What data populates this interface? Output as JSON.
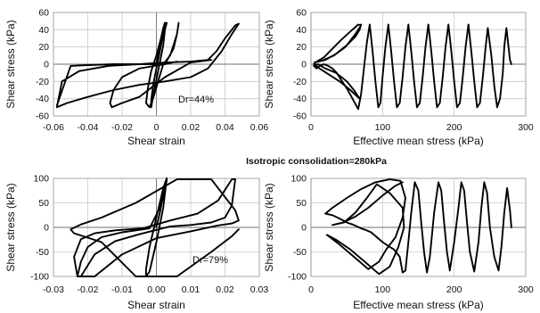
{
  "caption": "Isotropic consolidation=280kPa",
  "chart_data": [
    {
      "type": "line",
      "xlabel": "Shear strain",
      "ylabel": "Shear stress (kPa)",
      "xlim": [
        -0.06,
        0.06
      ],
      "ylim": [
        -60,
        60
      ],
      "xticks": [
        "-0.06",
        "-0.04",
        "-0.02",
        "0",
        "0.02",
        "0.04",
        "0.06"
      ],
      "yticks": [
        "-60",
        "-40",
        "-20",
        "0",
        "20",
        "40",
        "60"
      ],
      "annotation": "Dr=44%",
      "grid": true,
      "series": [
        {
          "x": [
            0.0,
            0.001,
            0.002,
            0.003,
            0.004,
            0.005,
            0.004,
            0.002,
            0.0,
            -0.002,
            -0.003,
            -0.003,
            -0.002,
            0.0,
            0.002,
            0.004,
            0.005,
            0.006
          ],
          "y": [
            0,
            10,
            22,
            33,
            42,
            48,
            35,
            15,
            -5,
            -25,
            -42,
            -50,
            -38,
            -18,
            2,
            22,
            40,
            48
          ]
        },
        {
          "x": [
            0.005,
            0.004,
            0.002,
            0.0,
            -0.003,
            -0.005,
            -0.006,
            -0.004,
            -0.002,
            0.001,
            0.004,
            0.008,
            0.01,
            0.012,
            0.013,
            0.012,
            0.01,
            0.005,
            -0.01,
            -0.02,
            -0.025,
            -0.027,
            -0.026,
            -0.02,
            -0.01,
            0.005,
            0.02,
            0.032
          ],
          "y": [
            48,
            40,
            25,
            10,
            -8,
            -28,
            -45,
            -50,
            -40,
            -20,
            0,
            10,
            22,
            35,
            48,
            35,
            18,
            0,
            -5,
            -15,
            -30,
            -45,
            -50,
            -45,
            -38,
            -15,
            2,
            5
          ]
        },
        {
          "x": [
            0.012,
            0.005,
            -0.01,
            -0.028,
            -0.045,
            -0.055,
            -0.058,
            -0.052,
            -0.04,
            -0.025,
            -0.01,
            0.005,
            0.02,
            0.03,
            0.038,
            0.044,
            0.048,
            0.046,
            0.04,
            0.035,
            0.03,
            0.02,
            0.005,
            -0.01,
            -0.025,
            -0.04,
            -0.05,
            -0.058
          ],
          "y": [
            3,
            0,
            0,
            -2,
            -8,
            -20,
            -50,
            -45,
            -38,
            -30,
            -24,
            -20,
            -15,
            -5,
            15,
            35,
            47,
            45,
            30,
            15,
            5,
            3,
            2,
            0,
            0,
            -1,
            -2,
            -48
          ]
        }
      ]
    },
    {
      "type": "line",
      "xlabel": "Effective mean stress (kPa)",
      "ylabel": "Shear stress (kPa)",
      "xlim": [
        0,
        300
      ],
      "ylim": [
        -60,
        60
      ],
      "xticks": [
        "0",
        "100",
        "200",
        "300"
      ],
      "yticks": [
        "-60",
        "-40",
        "-20",
        "0",
        "20",
        "40",
        "60"
      ],
      "grid": true,
      "series": [
        {
          "x": [
            280,
            278,
            276,
            273,
            270,
            268,
            264,
            260,
            256,
            252,
            247,
            244,
            240,
            236,
            232,
            228,
            224,
            220,
            216,
            212,
            208,
            204,
            200,
            196,
            192,
            188,
            184,
            180,
            176,
            172,
            168,
            164,
            160,
            156,
            152,
            148,
            144,
            140,
            136,
            132,
            128,
            124,
            120,
            116,
            112,
            108,
            104,
            100,
            97,
            94,
            90,
            86,
            82,
            78,
            74,
            70,
            66,
            58,
            50,
            42,
            36,
            30,
            24,
            18,
            12,
            8,
            4,
            10,
            20,
            35,
            50,
            60,
            68,
            55,
            40,
            25,
            12,
            4,
            8,
            18,
            30,
            42,
            55,
            66,
            70,
            62,
            48,
            32,
            15,
            5,
            20,
            35,
            50,
            62,
            68,
            70
          ],
          "y": [
            0,
            5,
            20,
            42,
            20,
            -10,
            -40,
            -50,
            -25,
            10,
            42,
            20,
            -15,
            -45,
            -50,
            -20,
            15,
            46,
            20,
            -15,
            -45,
            -50,
            -20,
            15,
            46,
            20,
            -15,
            -45,
            -50,
            -20,
            15,
            46,
            20,
            -15,
            -45,
            -50,
            -20,
            15,
            46,
            20,
            -15,
            -45,
            -50,
            -20,
            15,
            46,
            20,
            -15,
            -45,
            -50,
            -20,
            15,
            46,
            25,
            -5,
            -35,
            -52,
            -40,
            -28,
            -18,
            -10,
            -5,
            -2,
            0,
            -2,
            -5,
            -2,
            0,
            -5,
            -10,
            -20,
            -30,
            -40,
            -30,
            -20,
            -12,
            -5,
            0,
            3,
            8,
            18,
            28,
            38,
            46,
            45,
            35,
            20,
            10,
            4,
            2,
            5,
            12,
            22,
            32,
            40,
            46
          ]
        }
      ]
    },
    {
      "type": "line",
      "xlabel": "Shear strain",
      "ylabel": "Shear stress (kPa)",
      "xlim": [
        -0.03,
        0.03
      ],
      "ylim": [
        -100,
        100
      ],
      "xticks": [
        "-0.03",
        "-0.02",
        "-0.01",
        "0.00",
        "0.01",
        "0.02",
        "0.03"
      ],
      "yticks": [
        "-100",
        "-50",
        "0",
        "50",
        "100"
      ],
      "annotation": "Dr=79%",
      "grid": true,
      "series": [
        {
          "x": [
            0.0,
            0.001,
            0.002,
            0.003,
            0.003,
            0.002,
            0.0,
            -0.002,
            -0.003,
            -0.003,
            -0.002,
            0.0,
            0.002,
            0.003
          ],
          "y": [
            0,
            30,
            65,
            95,
            100,
            80,
            20,
            -40,
            -85,
            -100,
            -90,
            -30,
            40,
            100
          ]
        },
        {
          "x": [
            0.003,
            0.001,
            -0.002,
            -0.005,
            -0.01,
            -0.016,
            -0.02,
            -0.022,
            -0.023,
            -0.022,
            -0.018,
            -0.012,
            -0.005,
            0.004,
            0.01,
            0.016,
            0.02,
            0.022,
            0.023,
            0.022,
            0.018,
            0.012,
            0.004,
            -0.004,
            -0.012,
            -0.018,
            -0.022,
            -0.024,
            -0.023,
            -0.018,
            -0.01,
            0.0,
            0.01,
            0.018,
            0.022,
            0.024,
            0.023,
            0.016,
            0.006,
            -0.006,
            -0.016,
            -0.022,
            -0.025,
            -0.024,
            -0.016,
            -0.006,
            0.006,
            0.016,
            0.022,
            0.024
          ],
          "y": [
            100,
            40,
            -2,
            -5,
            -10,
            -20,
            -40,
            -70,
            -100,
            -100,
            -55,
            -28,
            -14,
            2,
            5,
            10,
            20,
            45,
            98,
            98,
            55,
            28,
            14,
            -2,
            -6,
            -12,
            -24,
            -60,
            -100,
            -100,
            -55,
            -22,
            -8,
            4,
            8,
            14,
            35,
            98,
            98,
            50,
            20,
            6,
            -4,
            -12,
            -30,
            -100,
            -100,
            -50,
            -18,
            -4
          ]
        }
      ]
    },
    {
      "type": "line",
      "xlabel": "Effective mean stress (kPa)",
      "ylabel": "Shear stress (kPa)",
      "xlim": [
        0,
        300
      ],
      "ylim": [
        -100,
        100
      ],
      "xticks": [
        "0",
        "100",
        "200",
        "300"
      ],
      "yticks": [
        "-100",
        "-50",
        "0",
        "50",
        "100"
      ],
      "grid": true,
      "series": [
        {
          "x": [
            280,
            278,
            274,
            270,
            266,
            262,
            256,
            250,
            246,
            242,
            238,
            234,
            228,
            222,
            218,
            214,
            210,
            206,
            200,
            194,
            190,
            186,
            182,
            178,
            172,
            166,
            162,
            158,
            154,
            150,
            145,
            140,
            136,
            132,
            128,
            124,
            116,
            108,
            100,
            92,
            84,
            76,
            70,
            60,
            50,
            40,
            30,
            20,
            30,
            50,
            70,
            90,
            110,
            125,
            132,
            128,
            118,
            105,
            95,
            80,
            60,
            40,
            22,
            35,
            55,
            75,
            95,
            110,
            122,
            130,
            128,
            110,
            92,
            78,
            62,
            46,
            30,
            45,
            62,
            80,
            100,
            118,
            128
          ],
          "y": [
            0,
            35,
            80,
            30,
            -40,
            -88,
            -60,
            0,
            70,
            92,
            40,
            -30,
            -90,
            -50,
            10,
            75,
            92,
            40,
            -30,
            -88,
            -50,
            10,
            75,
            92,
            30,
            -60,
            -92,
            -50,
            10,
            75,
            92,
            30,
            -30,
            -88,
            -92,
            -60,
            -45,
            -38,
            -30,
            -20,
            -10,
            -5,
            -2,
            5,
            10,
            18,
            25,
            28,
            40,
            60,
            78,
            92,
            98,
            95,
            60,
            20,
            -20,
            -45,
            -70,
            -85,
            -60,
            -35,
            -15,
            -25,
            -45,
            -70,
            -95,
            -80,
            -40,
            0,
            40,
            70,
            88,
            60,
            30,
            10,
            5,
            10,
            22,
            40,
            65,
            85,
            92
          ]
        }
      ]
    }
  ]
}
